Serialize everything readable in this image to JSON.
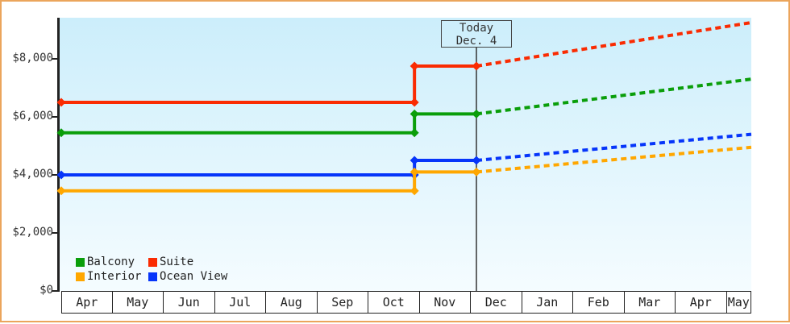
{
  "window": {
    "frame_color": "#eba55c",
    "background": "#ffffff",
    "axis_color": "#222222",
    "today_line_color": "#333333",
    "plot_bg_top": "#cceefb",
    "plot_bg_bottom": "#f5fcff"
  },
  "today_annotation": {
    "line1": "Today",
    "line2": "Dec. 4"
  },
  "legend": {
    "rows": [
      [
        {
          "label": "Balcony",
          "color": "#0a9e0a"
        },
        {
          "label": "Suite",
          "color": "#fa2b02"
        }
      ],
      [
        {
          "label": "Interior",
          "color": "#ffa700"
        },
        {
          "label": "Ocean View",
          "color": "#0635fa"
        }
      ]
    ]
  },
  "chart_data": {
    "type": "line",
    "title": "",
    "xlabel": "",
    "ylabel": "",
    "x_axis": {
      "month_labels": [
        "Apr",
        "May",
        "Jun",
        "Jul",
        "Aug",
        "Sep",
        "Oct",
        "Nov",
        "Dec",
        "Jan",
        "Feb",
        "Mar",
        "Apr",
        "May"
      ],
      "note": "x measured in months from Apr 1; last May cell truncated at plot right edge",
      "x_range_months": [
        0,
        13.48
      ]
    },
    "y_axis": {
      "tick_labels": [
        "$0",
        "$2,000",
        "$4,000",
        "$6,000",
        "$8,000"
      ],
      "tick_values": [
        0,
        2000,
        4000,
        6000,
        8000
      ],
      "range": [
        0,
        9400
      ],
      "grid": false
    },
    "annotation": {
      "label": [
        "Today",
        "Dec. 4"
      ],
      "x_month": 8.11
    },
    "series": [
      {
        "name": "Ocean View",
        "color": "#0635fa",
        "solid_points": [
          [
            0,
            4000
          ],
          [
            6.9,
            4000
          ],
          [
            6.9,
            4500
          ],
          [
            8.11,
            4500
          ]
        ],
        "dashed_points": [
          [
            8.11,
            4500
          ],
          [
            13.48,
            5400
          ]
        ],
        "price_start": 4000,
        "price_after_nov_step": 4500,
        "price_today": 4500,
        "projected_end": 5400
      },
      {
        "name": "Interior",
        "color": "#ffa700",
        "solid_points": [
          [
            0,
            3450
          ],
          [
            6.9,
            3450
          ],
          [
            6.9,
            4100
          ],
          [
            8.11,
            4100
          ]
        ],
        "dashed_points": [
          [
            8.11,
            4100
          ],
          [
            13.48,
            4950
          ]
        ],
        "price_start": 3450,
        "price_after_nov_step": 4100,
        "price_today": 4100,
        "projected_end": 4950
      },
      {
        "name": "Balcony",
        "color": "#0a9e0a",
        "solid_points": [
          [
            0,
            5450
          ],
          [
            6.9,
            5450
          ],
          [
            6.9,
            6100
          ],
          [
            8.11,
            6100
          ]
        ],
        "dashed_points": [
          [
            8.11,
            6100
          ],
          [
            13.48,
            7300
          ]
        ],
        "price_start": 5450,
        "price_after_nov_step": 6100,
        "price_today": 6100,
        "projected_end": 7300
      },
      {
        "name": "Suite",
        "color": "#fa2b02",
        "solid_points": [
          [
            0,
            6500
          ],
          [
            6.9,
            6500
          ],
          [
            6.9,
            7750
          ],
          [
            8.11,
            7750
          ]
        ],
        "dashed_points": [
          [
            8.11,
            7750
          ],
          [
            13.48,
            9250
          ]
        ],
        "price_start": 6500,
        "price_after_nov_step": 7750,
        "price_today": 7750,
        "projected_end": 9250
      }
    ]
  }
}
